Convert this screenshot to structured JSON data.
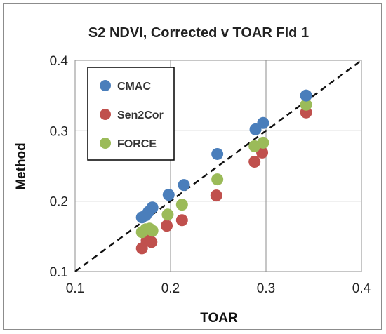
{
  "chart_data": {
    "type": "scatter",
    "title": "S2 NDVI, Corrected v TOAR  Fld 1",
    "xlabel": "TOAR",
    "ylabel": "Method",
    "xlim": [
      0.1,
      0.4
    ],
    "ylim": [
      0.1,
      0.4
    ],
    "xticks": [
      "0.1",
      "0.2",
      "0.3",
      "0.4"
    ],
    "yticks": [
      "0.1",
      "0.2",
      "0.3",
      "0.4"
    ],
    "grid": true,
    "legend_position": "top-left",
    "reference_line": "1:1 dashed",
    "series": [
      {
        "name": "CMAC",
        "color": "#4a7ebb",
        "points": [
          {
            "x": 0.17,
            "y": 0.177
          },
          {
            "x": 0.174,
            "y": 0.18
          },
          {
            "x": 0.177,
            "y": 0.185
          },
          {
            "x": 0.181,
            "y": 0.191
          },
          {
            "x": 0.198,
            "y": 0.209
          },
          {
            "x": 0.214,
            "y": 0.223
          },
          {
            "x": 0.249,
            "y": 0.267
          },
          {
            "x": 0.289,
            "y": 0.302
          },
          {
            "x": 0.297,
            "y": 0.311
          },
          {
            "x": 0.342,
            "y": 0.35
          }
        ]
      },
      {
        "name": "Sen2Cor",
        "color": "#c0504d",
        "points": [
          {
            "x": 0.17,
            "y": 0.133
          },
          {
            "x": 0.175,
            "y": 0.144
          },
          {
            "x": 0.18,
            "y": 0.142
          },
          {
            "x": 0.196,
            "y": 0.165
          },
          {
            "x": 0.212,
            "y": 0.173
          },
          {
            "x": 0.248,
            "y": 0.208
          },
          {
            "x": 0.288,
            "y": 0.256
          },
          {
            "x": 0.296,
            "y": 0.269
          },
          {
            "x": 0.342,
            "y": 0.326
          }
        ]
      },
      {
        "name": "FORCE",
        "color": "#9bbb59",
        "points": [
          {
            "x": 0.17,
            "y": 0.156
          },
          {
            "x": 0.174,
            "y": 0.16
          },
          {
            "x": 0.178,
            "y": 0.161
          },
          {
            "x": 0.181,
            "y": 0.158
          },
          {
            "x": 0.197,
            "y": 0.181
          },
          {
            "x": 0.212,
            "y": 0.195
          },
          {
            "x": 0.249,
            "y": 0.231
          },
          {
            "x": 0.288,
            "y": 0.278
          },
          {
            "x": 0.297,
            "y": 0.283
          },
          {
            "x": 0.342,
            "y": 0.337
          }
        ]
      }
    ]
  }
}
